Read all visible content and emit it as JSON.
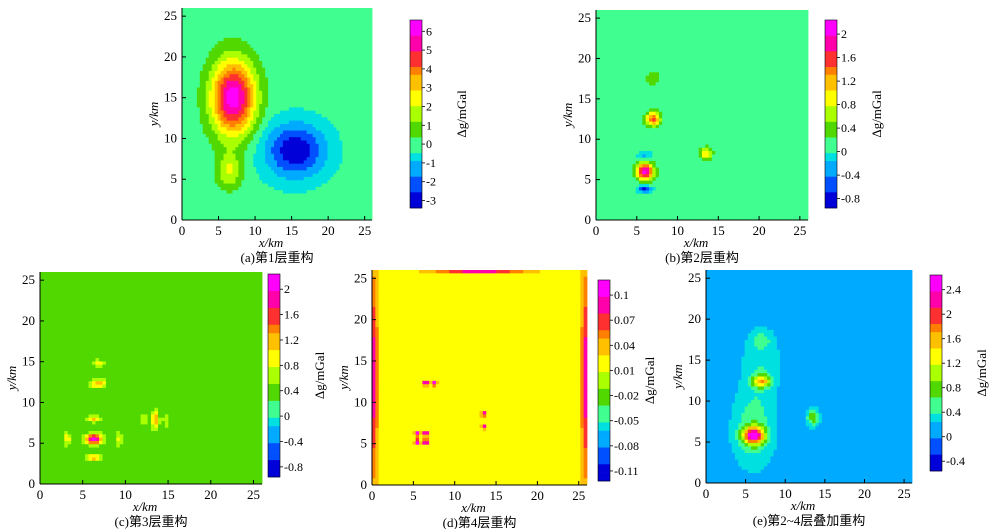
{
  "colormap": [
    "#0000d8",
    "#0050ff",
    "#00aaff",
    "#00e0e0",
    "#40ff90",
    "#50d800",
    "#aaff00",
    "#ffff00",
    "#ffc000",
    "#ff8000",
    "#ff3030",
    "#ff00aa",
    "#ff00ff"
  ],
  "background_color": "#4cd84c",
  "chart_data": [
    {
      "id": "a",
      "type": "heatmap",
      "caption": "(a)第1层重构",
      "xlabel": "x/km",
      "ylabel": "y/km",
      "colorbar_label": "Δg/mGal",
      "xlim": [
        0,
        26
      ],
      "ylim": [
        0,
        26
      ],
      "xticks": [
        0,
        5,
        10,
        15,
        20,
        25
      ],
      "yticks": [
        0,
        5,
        10,
        15,
        20,
        25
      ],
      "colorbar_ticks": [
        6,
        5,
        4,
        3,
        2,
        1,
        0,
        -1,
        -2,
        -3
      ],
      "colorbar_range": [
        -3.6,
        7
      ],
      "background_value": 0,
      "sources": [
        {
          "x": 7,
          "y": 15,
          "amp": 6.8,
          "sx": 2.1,
          "sy": 3.2
        },
        {
          "x": 6.5,
          "y": 6,
          "amp": 2.2,
          "sx": 1.2,
          "sy": 1.5
        },
        {
          "x": 15.5,
          "y": 8.5,
          "amp": -3.5,
          "sx": 3.0,
          "sy": 2.4
        }
      ]
    },
    {
      "id": "b",
      "type": "heatmap",
      "caption": "(b)第2层重构",
      "xlabel": "x/km",
      "ylabel": "y/km",
      "colorbar_label": "Δg/mGal",
      "xlim": [
        0,
        26
      ],
      "ylim": [
        0,
        26
      ],
      "xticks": [
        0,
        5,
        10,
        15,
        20,
        25
      ],
      "yticks": [
        0,
        5,
        10,
        15,
        20,
        25
      ],
      "colorbar_ticks": [
        "2",
        "1.6",
        "1.2",
        "0.8",
        "0.4",
        "0",
        "-0.4",
        "-0.8"
      ],
      "colorbar_range": [
        -0.95,
        2.15
      ],
      "background_value": 0.1,
      "sources": [
        {
          "x": 6,
          "y": 6,
          "amp": 2.0,
          "sx": 0.7,
          "sy": 0.7
        },
        {
          "x": 6,
          "y": 3.8,
          "amp": -0.9,
          "sx": 0.6,
          "sy": 0.3
        },
        {
          "x": 6,
          "y": 8.0,
          "amp": -0.4,
          "sx": 0.6,
          "sy": 0.3
        },
        {
          "x": 7,
          "y": 12.5,
          "amp": 1.4,
          "sx": 0.6,
          "sy": 0.6
        },
        {
          "x": 7,
          "y": 17.5,
          "amp": 0.35,
          "sx": 0.6,
          "sy": 0.6
        },
        {
          "x": 13.5,
          "y": 8.2,
          "amp": 0.9,
          "sx": 0.5,
          "sy": 0.5
        }
      ]
    },
    {
      "id": "c",
      "type": "heatmap",
      "caption": "(c)第3层重构",
      "xlabel": "x/km",
      "ylabel": "y/km",
      "colorbar_label": "Δg/mGal",
      "xlim": [
        0,
        26
      ],
      "ylim": [
        0,
        26
      ],
      "xticks": [
        0,
        5,
        10,
        15,
        20,
        25
      ],
      "yticks": [
        0,
        5,
        10,
        15,
        20,
        25
      ],
      "colorbar_ticks": [
        "2",
        "1.6",
        "1.2",
        "0.8",
        "0.4",
        "0",
        "-0.4",
        "-0.8"
      ],
      "colorbar_range": [
        -0.95,
        2.15
      ],
      "background_value": 0.3,
      "sources": [
        {
          "x": 6.3,
          "y": 5.5,
          "amp": 1.7,
          "sx": 0.7,
          "sy": 0.45
        },
        {
          "x": 6.3,
          "y": 3.2,
          "amp": 0.8,
          "sx": 0.6,
          "sy": 0.3
        },
        {
          "x": 6.3,
          "y": 8.0,
          "amp": 0.7,
          "sx": 0.6,
          "sy": 0.3
        },
        {
          "x": 3.2,
          "y": 5.5,
          "amp": 0.6,
          "sx": 0.3,
          "sy": 0.6
        },
        {
          "x": 9.2,
          "y": 5.5,
          "amp": 0.5,
          "sx": 0.3,
          "sy": 0.6
        },
        {
          "x": 6.8,
          "y": 12.3,
          "amp": 0.9,
          "sx": 0.6,
          "sy": 0.4
        },
        {
          "x": 6.8,
          "y": 14.8,
          "amp": 0.6,
          "sx": 0.5,
          "sy": 0.3
        },
        {
          "x": 13.5,
          "y": 7.8,
          "amp": 0.9,
          "sx": 0.3,
          "sy": 0.8
        },
        {
          "x": 12.2,
          "y": 7.8,
          "amp": 0.4,
          "sx": 0.3,
          "sy": 0.6
        },
        {
          "x": 14.8,
          "y": 7.8,
          "amp": 0.4,
          "sx": 0.3,
          "sy": 0.6
        }
      ]
    },
    {
      "id": "d",
      "type": "heatmap",
      "caption": "(d)第4层重构",
      "xlabel": "x/km",
      "ylabel": "y/km",
      "colorbar_label": "Δg/mGal",
      "xlim": [
        0,
        26
      ],
      "ylim": [
        0,
        26
      ],
      "xticks": [
        0,
        5,
        10,
        15,
        20,
        25
      ],
      "yticks": [
        0,
        5,
        10,
        15,
        20,
        25
      ],
      "colorbar_ticks": [
        "0.1",
        "0.07",
        "0.04",
        "0.01",
        "-0.02",
        "-0.05",
        "-0.08",
        "-0.11"
      ],
      "colorbar_range": [
        -0.13,
        0.12
      ],
      "background_value": 0.01,
      "sources": [
        {
          "x": 5.5,
          "y": 6.2,
          "amp": 0.13,
          "sx": 0.22,
          "sy": 0.22
        },
        {
          "x": 6.5,
          "y": 6.2,
          "amp": 0.13,
          "sx": 0.22,
          "sy": 0.22
        },
        {
          "x": 5.5,
          "y": 5.2,
          "amp": 0.13,
          "sx": 0.22,
          "sy": 0.22
        },
        {
          "x": 6.5,
          "y": 5.2,
          "amp": 0.13,
          "sx": 0.22,
          "sy": 0.22
        },
        {
          "x": 6.5,
          "y": 12.3,
          "amp": 0.12,
          "sx": 0.22,
          "sy": 0.22
        },
        {
          "x": 7.5,
          "y": 12.3,
          "amp": 0.12,
          "sx": 0.22,
          "sy": 0.22
        },
        {
          "x": 13.5,
          "y": 8.6,
          "amp": 0.11,
          "sx": 0.2,
          "sy": 0.2
        },
        {
          "x": 13.5,
          "y": 7.0,
          "amp": 0.11,
          "sx": 0.2,
          "sy": 0.2
        },
        {
          "x": 0.3,
          "y": 13,
          "amp": 0.09,
          "sx": 0.25,
          "sy": 9
        },
        {
          "x": 25.7,
          "y": 13,
          "amp": 0.09,
          "sx": 0.25,
          "sy": 9
        },
        {
          "x": 13,
          "y": 25.8,
          "amp": 0.08,
          "sx": 4,
          "sy": 0.2
        }
      ]
    },
    {
      "id": "e",
      "type": "heatmap",
      "caption": "(e)第2~4层叠加重构",
      "xlabel": "x/km",
      "ylabel": "y/km",
      "colorbar_label": "Δg/mGal",
      "xlim": [
        0,
        26
      ],
      "ylim": [
        0,
        26
      ],
      "xticks": [
        0,
        5,
        10,
        15,
        20,
        25
      ],
      "yticks": [
        0,
        5,
        10,
        15,
        20,
        25
      ],
      "colorbar_ticks": [
        "2.4",
        "2",
        "1.6",
        "1.2",
        "0.8",
        "0.4",
        "0",
        "-0.4"
      ],
      "colorbar_range": [
        -0.6,
        2.6
      ],
      "background_value": -0.05,
      "sources": [
        {
          "x": 6,
          "y": 5.8,
          "amp": 2.3,
          "sx": 0.9,
          "sy": 0.7
        },
        {
          "x": 6,
          "y": 6.5,
          "amp": 0.6,
          "sx": 2.0,
          "sy": 3.5
        },
        {
          "x": 7,
          "y": 12.4,
          "amp": 1.3,
          "sx": 0.8,
          "sy": 0.5
        },
        {
          "x": 7,
          "y": 15,
          "amp": 0.4,
          "sx": 1.8,
          "sy": 3.0
        },
        {
          "x": 7,
          "y": 17.5,
          "amp": 0.3,
          "sx": 0.9,
          "sy": 0.7
        },
        {
          "x": 13.5,
          "y": 8,
          "amp": 0.9,
          "sx": 0.6,
          "sy": 0.8
        }
      ]
    }
  ]
}
